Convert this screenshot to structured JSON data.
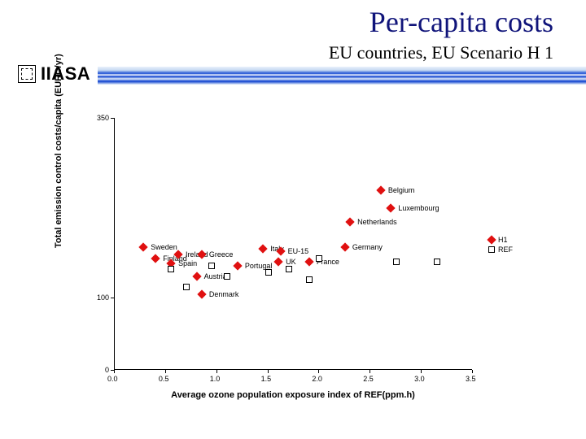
{
  "title": "Per-capita costs",
  "subtitle": "EU countries,  EU  Scenario H 1",
  "iiasa_label": "IIASA",
  "chart": {
    "type": "scatter",
    "x_title": "Average ozone population exposure index of REF(ppm.h)",
    "y_title": "Total emission control costs/capita (EURO/yr)",
    "xlim": [
      0.0,
      3.5
    ],
    "ylim": [
      0,
      350
    ],
    "xtick_step": 0.5,
    "xticks": [
      "0.0",
      "0.5",
      "1.0",
      "1.5",
      "2.0",
      "2.5",
      "3.0",
      "3.5"
    ],
    "yticks": [
      {
        "v": 0,
        "label": "0"
      },
      {
        "v": 100,
        "label": "100"
      },
      {
        "v": 350,
        "label": "350"
      }
    ],
    "background_color": "#ffffff",
    "axis_color": "#000000",
    "label_fontsize": 11,
    "tick_fontsize": 9,
    "series": [
      {
        "name": "H1",
        "marker": "diamond",
        "color": "#e01010",
        "points": [
          {
            "x": 0.28,
            "y": 170,
            "label": "Sweden"
          },
          {
            "x": 0.4,
            "y": 155,
            "label": "Finland"
          },
          {
            "x": 0.62,
            "y": 160,
            "label": "Ireland"
          },
          {
            "x": 0.55,
            "y": 148,
            "label": "Spain"
          },
          {
            "x": 0.85,
            "y": 160,
            "label": "Greece"
          },
          {
            "x": 0.8,
            "y": 130,
            "label": "Austria"
          },
          {
            "x": 0.85,
            "y": 105,
            "label": "Denmark"
          },
          {
            "x": 1.2,
            "y": 145,
            "label": "Portugal"
          },
          {
            "x": 1.45,
            "y": 168,
            "label": "Italy"
          },
          {
            "x": 1.6,
            "y": 150,
            "label": "UK"
          },
          {
            "x": 1.62,
            "y": 165,
            "label": "EU-15"
          },
          {
            "x": 1.9,
            "y": 150,
            "label": "France"
          },
          {
            "x": 2.25,
            "y": 170,
            "label": "Germany"
          },
          {
            "x": 2.3,
            "y": 205,
            "label": "Netherlands"
          },
          {
            "x": 2.7,
            "y": 225,
            "label": "Luxembourg"
          },
          {
            "x": 2.6,
            "y": 250,
            "label": "Belgium"
          }
        ]
      },
      {
        "name": "REF",
        "marker": "square",
        "color": "#000000",
        "points": [
          {
            "x": 0.55,
            "y": 140
          },
          {
            "x": 0.7,
            "y": 115
          },
          {
            "x": 0.95,
            "y": 145
          },
          {
            "x": 1.1,
            "y": 130
          },
          {
            "x": 1.5,
            "y": 135
          },
          {
            "x": 1.7,
            "y": 140
          },
          {
            "x": 1.9,
            "y": 125
          },
          {
            "x": 2.0,
            "y": 155
          },
          {
            "x": 2.75,
            "y": 150
          },
          {
            "x": 3.15,
            "y": 150
          }
        ]
      }
    ],
    "legend": {
      "items": [
        {
          "marker": "diamond",
          "color": "#e01010",
          "label": "H1"
        },
        {
          "marker": "square",
          "color": "#000000",
          "label": "REF"
        }
      ]
    }
  }
}
